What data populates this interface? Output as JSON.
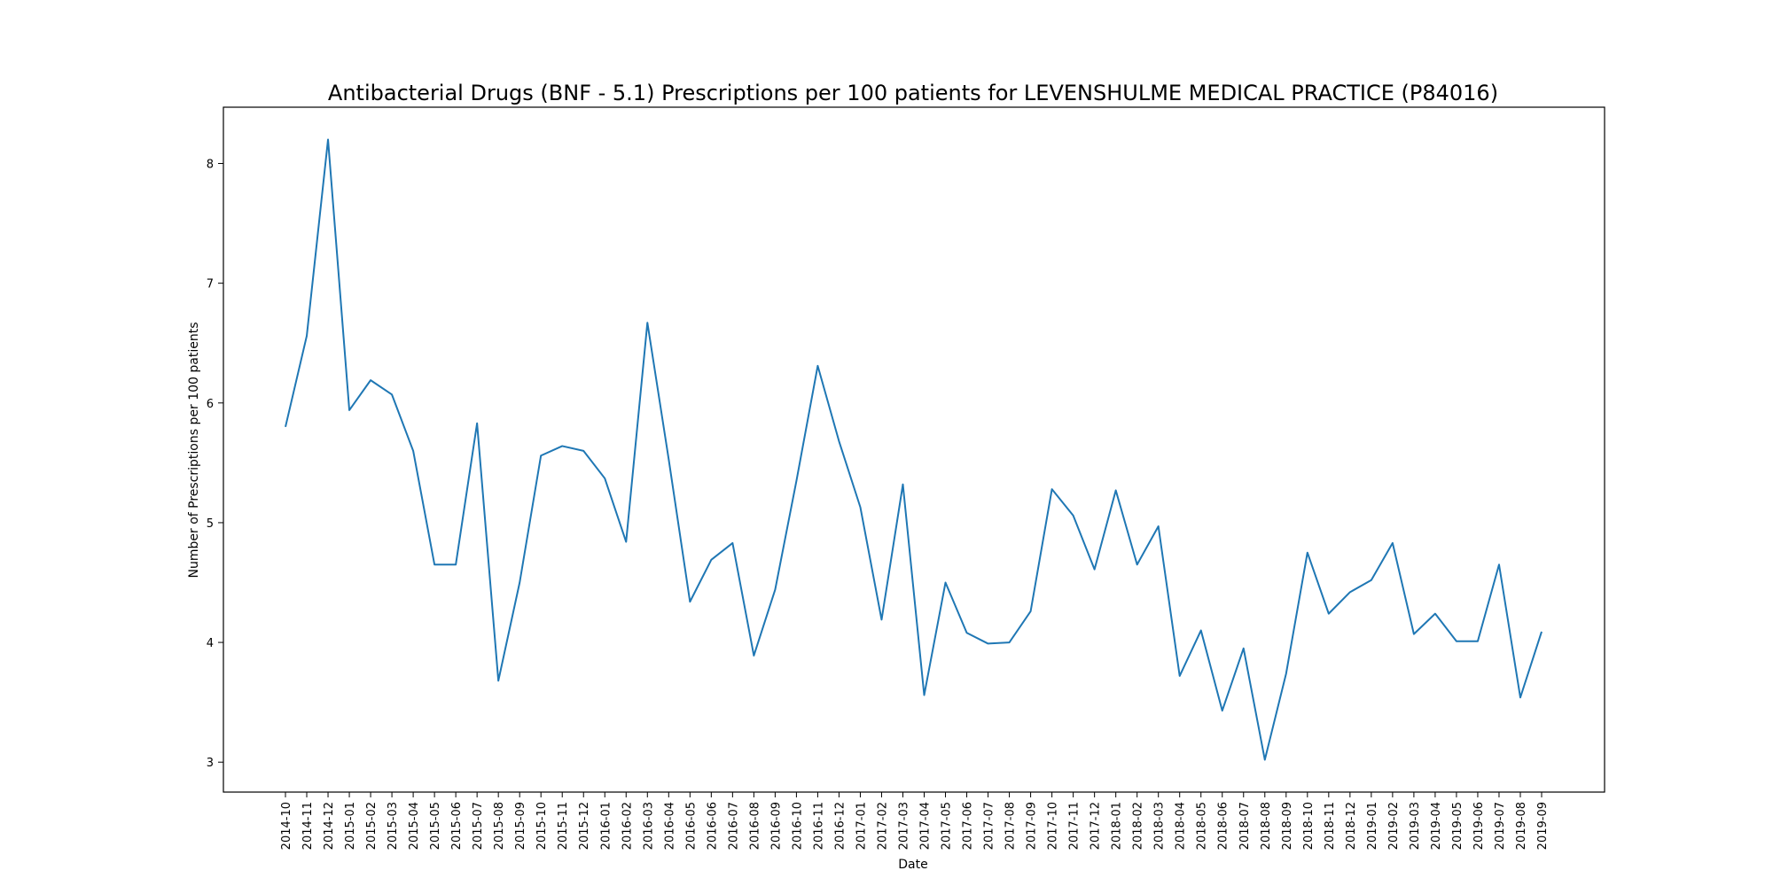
{
  "chart_data": {
    "type": "line",
    "title": "Antibacterial Drugs (BNF - 5.1) Prescriptions per 100 patients for LEVENSHULME MEDICAL PRACTICE (P84016)",
    "xlabel": "Date",
    "ylabel": "Number of Prescriptions per 100 patients",
    "ylim": [
      2.75,
      8.47
    ],
    "yticks": [
      3,
      4,
      5,
      6,
      7,
      8
    ],
    "grid": false,
    "legend": "none",
    "line_color": "#1f77b4",
    "categories": [
      "2014-10",
      "2014-11",
      "2014-12",
      "2015-01",
      "2015-02",
      "2015-03",
      "2015-04",
      "2015-05",
      "2015-06",
      "2015-07",
      "2015-08",
      "2015-09",
      "2015-10",
      "2015-11",
      "2015-12",
      "2016-01",
      "2016-02",
      "2016-03",
      "2016-04",
      "2016-05",
      "2016-06",
      "2016-07",
      "2016-08",
      "2016-09",
      "2016-10",
      "2016-11",
      "2016-12",
      "2017-01",
      "2017-02",
      "2017-03",
      "2017-04",
      "2017-05",
      "2017-06",
      "2017-07",
      "2017-08",
      "2017-09",
      "2017-10",
      "2017-11",
      "2017-12",
      "2018-01",
      "2018-02",
      "2018-03",
      "2018-04",
      "2018-05",
      "2018-06",
      "2018-07",
      "2018-08",
      "2018-09",
      "2018-10",
      "2018-11",
      "2018-12",
      "2019-01",
      "2019-02",
      "2019-03",
      "2019-04",
      "2019-05",
      "2019-06",
      "2019-07",
      "2019-08",
      "2019-09"
    ],
    "series": [
      {
        "values": [
          5.8,
          6.56,
          8.2,
          5.94,
          6.19,
          6.07,
          5.6,
          4.65,
          4.65,
          5.83,
          3.68,
          4.5,
          5.56,
          5.64,
          5.6,
          5.37,
          4.84,
          6.67,
          5.53,
          4.34,
          4.69,
          4.83,
          3.89,
          4.44,
          5.35,
          6.31,
          5.68,
          5.13,
          4.19,
          5.32,
          3.56,
          4.5,
          4.08,
          3.99,
          4.0,
          4.26,
          5.28,
          5.06,
          4.61,
          5.27,
          4.65,
          4.97,
          3.72,
          4.1,
          3.43,
          3.95,
          3.02,
          3.74,
          4.75,
          4.24,
          4.42,
          4.52,
          4.83,
          4.07,
          4.24,
          4.01,
          4.01,
          4.65,
          3.54,
          4.09
        ]
      }
    ]
  }
}
